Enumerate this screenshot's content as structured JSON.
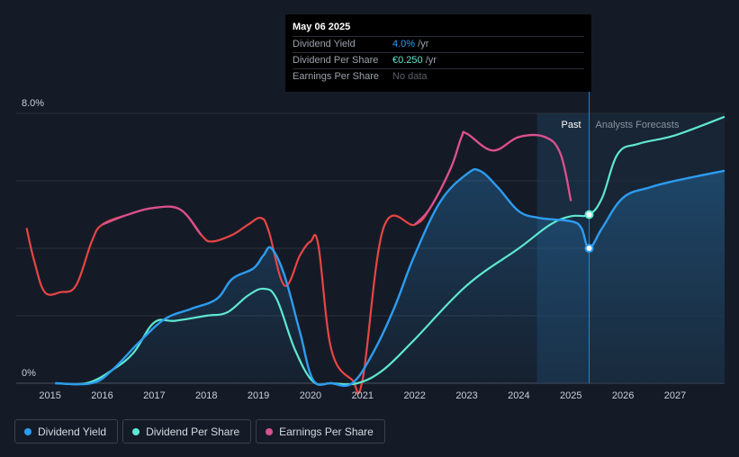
{
  "tooltip": {
    "date": "May 06 2025",
    "rows": [
      {
        "label": "Dividend Yield",
        "value": "4.0%",
        "unit": " /yr"
      },
      {
        "label": "Dividend Per Share",
        "value": "€0.250",
        "unit": " /yr"
      },
      {
        "label": "Earnings Per Share",
        "value": "No data",
        "unit": ""
      }
    ]
  },
  "zones": {
    "past": "Past",
    "forecast": "Analysts Forecasts"
  },
  "legend": [
    {
      "label": "Dividend Yield",
      "color": "#2d9cf0"
    },
    {
      "label": "Dividend Per Share",
      "color": "#5ee8d0"
    },
    {
      "label": "Earnings Per Share",
      "color": "#d9518f"
    }
  ],
  "chart_data": {
    "type": "line",
    "y_tick_labels": [
      "8.0%",
      "0%"
    ],
    "ylim": [
      0,
      8
    ],
    "x_ticks": [
      2015,
      2016,
      2017,
      2018,
      2019,
      2020,
      2021,
      2022,
      2023,
      2024,
      2025,
      2026,
      2027
    ],
    "xlim": [
      2014.35,
      2027.95
    ],
    "grid": true,
    "legend_position": "bottom-left",
    "forecast_start": 2025.35,
    "colors": {
      "dividend_yield": "#2d9cf0",
      "dividend_per_share": "#5ee8d0",
      "earnings_per_share": "#d9518f",
      "earnings_per_share_recent": "#e84545"
    },
    "series": [
      {
        "key": "dividend_yield",
        "points": [
          [
            2015.1,
            0
          ],
          [
            2015.8,
            0
          ],
          [
            2016.2,
            0.4
          ],
          [
            2016.7,
            1.2
          ],
          [
            2017.2,
            1.9
          ],
          [
            2017.7,
            2.2
          ],
          [
            2018.2,
            2.5
          ],
          [
            2018.5,
            3.1
          ],
          [
            2018.9,
            3.4
          ],
          [
            2019.1,
            3.8
          ],
          [
            2019.25,
            4.0
          ],
          [
            2019.5,
            3.2
          ],
          [
            2019.8,
            1.5
          ],
          [
            2020.05,
            0.1
          ],
          [
            2020.4,
            0
          ],
          [
            2020.8,
            0
          ],
          [
            2021.2,
            0.9
          ],
          [
            2021.6,
            2.2
          ],
          [
            2022.0,
            3.8
          ],
          [
            2022.5,
            5.4
          ],
          [
            2023.0,
            6.2
          ],
          [
            2023.25,
            6.3
          ],
          [
            2023.6,
            5.8
          ],
          [
            2024.0,
            5.1
          ],
          [
            2024.4,
            4.9
          ],
          [
            2025.0,
            4.8
          ],
          [
            2025.2,
            4.6
          ],
          [
            2025.35,
            4.0
          ],
          [
            2025.6,
            4.6
          ],
          [
            2026.0,
            5.5
          ],
          [
            2026.5,
            5.8
          ],
          [
            2027.0,
            6.0
          ],
          [
            2027.95,
            6.3
          ]
        ]
      },
      {
        "key": "dividend_per_share",
        "points": [
          [
            2015.1,
            0
          ],
          [
            2015.7,
            0
          ],
          [
            2016.2,
            0.4
          ],
          [
            2016.6,
            0.9
          ],
          [
            2017.0,
            1.8
          ],
          [
            2017.4,
            1.85
          ],
          [
            2018.0,
            2.0
          ],
          [
            2018.4,
            2.1
          ],
          [
            2018.8,
            2.6
          ],
          [
            2019.1,
            2.8
          ],
          [
            2019.35,
            2.5
          ],
          [
            2019.7,
            1.0
          ],
          [
            2020.05,
            0.05
          ],
          [
            2020.4,
            0
          ],
          [
            2020.9,
            0
          ],
          [
            2021.4,
            0.4
          ],
          [
            2022.0,
            1.3
          ],
          [
            2023.0,
            2.9
          ],
          [
            2024.0,
            4.0
          ],
          [
            2024.6,
            4.7
          ],
          [
            2025.0,
            4.95
          ],
          [
            2025.35,
            5.0
          ],
          [
            2025.6,
            5.5
          ],
          [
            2025.9,
            6.8
          ],
          [
            2026.3,
            7.1
          ],
          [
            2027.0,
            7.35
          ],
          [
            2027.95,
            7.9
          ]
        ]
      },
      {
        "key": "earnings_per_share",
        "points": [
          [
            2014.55,
            4.6
          ],
          [
            2014.7,
            3.6
          ],
          [
            2014.9,
            2.7
          ],
          [
            2015.2,
            2.7
          ],
          [
            2015.5,
            2.9
          ],
          [
            2015.8,
            4.2
          ],
          [
            2016.0,
            4.7
          ],
          [
            2016.5,
            5.0
          ],
          [
            2017.0,
            5.2
          ],
          [
            2017.5,
            5.15
          ],
          [
            2017.9,
            4.4
          ],
          [
            2018.1,
            4.2
          ],
          [
            2018.5,
            4.4
          ],
          [
            2018.8,
            4.7
          ],
          [
            2019.05,
            4.9
          ],
          [
            2019.2,
            4.5
          ],
          [
            2019.5,
            2.9
          ],
          [
            2019.8,
            3.8
          ],
          [
            2020.0,
            4.2
          ],
          [
            2020.15,
            4.1
          ],
          [
            2020.4,
            1.0
          ],
          [
            2020.8,
            0.1
          ],
          [
            2021.0,
            0.1
          ],
          [
            2021.4,
            4.6
          ],
          [
            2022.0,
            4.7
          ],
          [
            2022.3,
            5.2
          ],
          [
            2022.7,
            6.4
          ],
          [
            2022.9,
            7.3
          ],
          [
            2023.0,
            7.4
          ],
          [
            2023.5,
            6.9
          ],
          [
            2024.0,
            7.3
          ],
          [
            2024.5,
            7.3
          ],
          [
            2024.8,
            6.8
          ],
          [
            2025.0,
            5.4
          ]
        ]
      }
    ]
  }
}
